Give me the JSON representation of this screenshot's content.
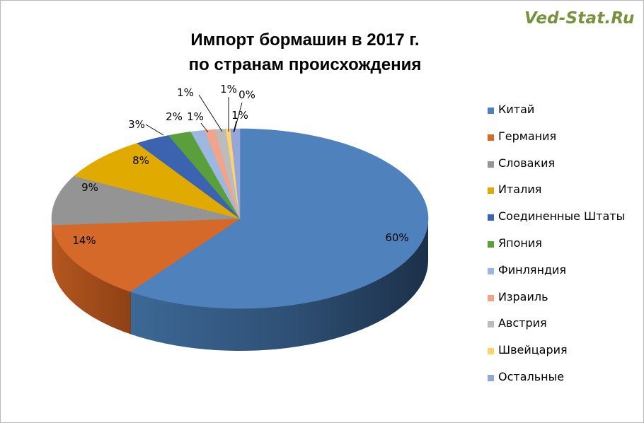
{
  "watermark": "Ved-Stat.Ru",
  "chart_data": {
    "type": "pie",
    "title": "Импорт бормашин в 2017 г. по странам происхождения",
    "title_lines": [
      "Импорт бормашин в 2017 г.",
      "по странам происхождения"
    ],
    "legend_position": "right",
    "three_d": true,
    "slices": [
      {
        "name": "Китай",
        "value": 60,
        "label": "60%",
        "color": "#4f81bd"
      },
      {
        "name": "Германия",
        "value": 14,
        "label": "14%",
        "color": "#d4692a"
      },
      {
        "name": "Словакия",
        "value": 9,
        "label": "9%",
        "color": "#949494"
      },
      {
        "name": "Италия",
        "value": 8,
        "label": "8%",
        "color": "#e0aa00"
      },
      {
        "name": "Соединенные Штаты",
        "value": 3,
        "label": "3%",
        "color": "#3c63b0"
      },
      {
        "name": "Япония",
        "value": 2,
        "label": "2%",
        "color": "#5b9e3c"
      },
      {
        "name": "Финляндия",
        "value": 1.2,
        "label": "1%",
        "color": "#9cb8e0"
      },
      {
        "name": "Израиль",
        "value": 0.9,
        "label": "1%",
        "color": "#f0a48c"
      },
      {
        "name": "Австрия",
        "value": 0.9,
        "label": "1%",
        "color": "#bcbcbc"
      },
      {
        "name": "Швейцария",
        "value": 0.4,
        "label": "0%",
        "color": "#ffd36e"
      },
      {
        "name": "Остальные",
        "value": 0.8,
        "label": "1%",
        "color": "#94a7d8"
      }
    ]
  }
}
